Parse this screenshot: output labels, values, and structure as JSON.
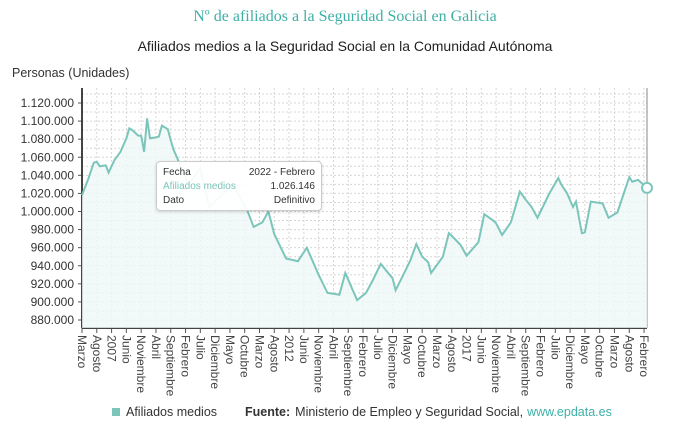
{
  "chart_data": {
    "type": "area",
    "title": "Nº de afiliados a la Seguridad Social en Galicia",
    "subtitle": "Afiliados medios a la Seguridad Social en la Comunidad Autónoma",
    "ylabel": "Personas (Unidades)",
    "ylim": [
      870000,
      1130000
    ],
    "yticks": [
      "1.120.000",
      "1.100.000",
      "1.080.000",
      "1.060.000",
      "1.040.000",
      "1.020.000",
      "1.000.000",
      "980.000",
      "960.000",
      "940.000",
      "920.000",
      "900.000",
      "880.000"
    ],
    "ytick_values": [
      1120000,
      1100000,
      1080000,
      1060000,
      1040000,
      1020000,
      1000000,
      980000,
      960000,
      940000,
      920000,
      900000,
      880000
    ],
    "xrange": [
      "2006-03",
      "2022-02"
    ],
    "xticks": [
      "Marzo",
      "Agosto",
      "2007",
      "Junio",
      "Noviembre",
      "Abril",
      "Septiembre",
      "Febrero",
      "Julio",
      "Diciembre",
      "Mayo",
      "Octubre",
      "Marzo",
      "Agosto",
      "2012",
      "Junio",
      "Noviembre",
      "Abril",
      "Septiembre",
      "Febrero",
      "Julio",
      "Diciembre",
      "Mayo",
      "Octubre",
      "Marzo",
      "Agosto",
      "2017",
      "Junio",
      "Noviembre",
      "Abril",
      "Septiembre",
      "Febrero",
      "Julio",
      "Diciembre",
      "Mayo",
      "Octubre",
      "Marzo",
      "Agosto",
      "Febrero"
    ],
    "grid": true,
    "legend_position": "bottom",
    "series": [
      {
        "name": "Afiliados medios",
        "color": "#7cc5bb",
        "points": [
          [
            "2006-03",
            1018000
          ],
          [
            "2006-05",
            1035000
          ],
          [
            "2006-07",
            1054000
          ],
          [
            "2006-08",
            1055000
          ],
          [
            "2006-09",
            1050000
          ],
          [
            "2006-11",
            1051000
          ],
          [
            "2006-12",
            1043000
          ],
          [
            "2007-02",
            1057000
          ],
          [
            "2007-04",
            1066000
          ],
          [
            "2007-06",
            1081000
          ],
          [
            "2007-07",
            1092000
          ],
          [
            "2007-08",
            1090000
          ],
          [
            "2007-10",
            1084000
          ],
          [
            "2007-11",
            1084000
          ],
          [
            "2007-12",
            1066000
          ],
          [
            "2008-01",
            1103000
          ],
          [
            "2008-02",
            1081000
          ],
          [
            "2008-04",
            1082000
          ],
          [
            "2008-05",
            1083000
          ],
          [
            "2008-06",
            1095000
          ],
          [
            "2008-08",
            1091000
          ],
          [
            "2008-09",
            1079000
          ],
          [
            "2008-10",
            1068000
          ],
          [
            "2008-12",
            1053000
          ],
          [
            "2009-03",
            1030000
          ],
          [
            "2009-07",
            1048000
          ],
          [
            "2009-10",
            1005000
          ],
          [
            "2010-06",
            1030000
          ],
          [
            "2010-11",
            1000000
          ],
          [
            "2011-01",
            983000
          ],
          [
            "2011-04",
            988000
          ],
          [
            "2011-06",
            1000000
          ],
          [
            "2011-08",
            975000
          ],
          [
            "2011-12",
            948000
          ],
          [
            "2012-04",
            945000
          ],
          [
            "2012-07",
            960000
          ],
          [
            "2012-11",
            930000
          ],
          [
            "2013-02",
            910000
          ],
          [
            "2013-06",
            908000
          ],
          [
            "2013-08",
            932000
          ],
          [
            "2013-12",
            902000
          ],
          [
            "2014-03",
            910000
          ],
          [
            "2014-05",
            922000
          ],
          [
            "2014-08",
            942000
          ],
          [
            "2014-12",
            926000
          ],
          [
            "2015-01",
            913000
          ],
          [
            "2015-03",
            926000
          ],
          [
            "2015-06",
            946000
          ],
          [
            "2015-08",
            964000
          ],
          [
            "2015-10",
            950000
          ],
          [
            "2015-12",
            944000
          ],
          [
            "2016-01",
            932000
          ],
          [
            "2016-05",
            950000
          ],
          [
            "2016-07",
            976000
          ],
          [
            "2016-08",
            973000
          ],
          [
            "2016-11",
            963000
          ],
          [
            "2017-01",
            951000
          ],
          [
            "2017-05",
            966000
          ],
          [
            "2017-07",
            997000
          ],
          [
            "2017-10",
            990000
          ],
          [
            "2017-11",
            987000
          ],
          [
            "2018-01",
            974000
          ],
          [
            "2018-04",
            988000
          ],
          [
            "2018-07",
            1022000
          ],
          [
            "2018-09",
            1013000
          ],
          [
            "2018-11",
            1005000
          ],
          [
            "2019-01",
            993000
          ],
          [
            "2019-05",
            1020000
          ],
          [
            "2019-08",
            1037000
          ],
          [
            "2019-09",
            1030000
          ],
          [
            "2019-11",
            1020000
          ],
          [
            "2020-01",
            1005000
          ],
          [
            "2020-02",
            1011000
          ],
          [
            "2020-04",
            976000
          ],
          [
            "2020-05",
            977000
          ],
          [
            "2020-07",
            1011000
          ],
          [
            "2020-11",
            1009000
          ],
          [
            "2021-01",
            993000
          ],
          [
            "2021-04",
            999000
          ],
          [
            "2021-08",
            1038000
          ],
          [
            "2021-09",
            1033000
          ],
          [
            "2021-11",
            1035000
          ],
          [
            "2022-02",
            1026146
          ]
        ]
      }
    ]
  },
  "tooltip": {
    "fecha_label": "Fecha",
    "fecha_value": "2022 - Febrero",
    "series_label": "Afiliados medios",
    "series_value": "1.026.146",
    "dato_label": "Dato",
    "dato_value": "Definitivo"
  },
  "legend": {
    "series": "Afiliados medios",
    "source_label": "Fuente:",
    "source": "Ministerio de Empleo y Seguridad Social,",
    "link": "www.epdata.es"
  }
}
